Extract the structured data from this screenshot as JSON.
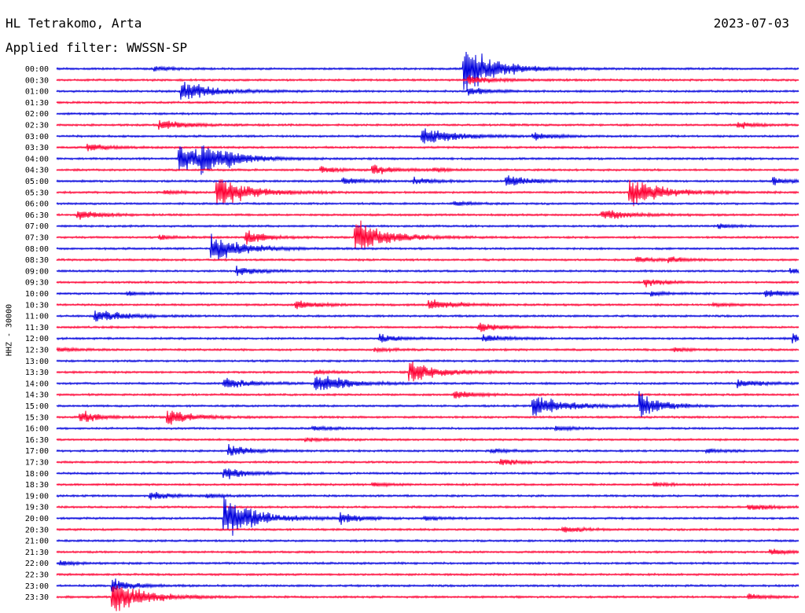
{
  "header": {
    "station": "HL Tetrakomo, Arta",
    "date": "2023-07-03",
    "filter": "Applied filter: WWSSN-SP"
  },
  "channel_label": "HHZ - 30000",
  "colors": {
    "blue": "#0000dd",
    "red": "#ff0033"
  },
  "chart_data": {
    "type": "line",
    "title": "HL Tetrakomo, Arta",
    "date": "2023-07-03",
    "ylabel": "HHZ - 30000",
    "row_minutes": 30,
    "xlim": [
      0,
      30
    ],
    "series_colors": [
      "#0000dd",
      "#ff0033"
    ],
    "rows": [
      {
        "label": "00:00",
        "color": "#0000dd",
        "events": [
          [
            16.5,
            35,
            1.0
          ],
          [
            4.0,
            3,
            0.5
          ]
        ]
      },
      {
        "label": "00:30",
        "color": "#ff0033",
        "events": [
          [
            16.7,
            6,
            0.8
          ]
        ]
      },
      {
        "label": "01:00",
        "color": "#0000dd",
        "events": [
          [
            5.1,
            14,
            1.0
          ],
          [
            16.7,
            6,
            0.5
          ]
        ]
      },
      {
        "label": "01:30",
        "color": "#ff0033",
        "events": []
      },
      {
        "label": "02:00",
        "color": "#0000dd",
        "events": []
      },
      {
        "label": "02:30",
        "color": "#ff0033",
        "events": [
          [
            4.2,
            8,
            0.7
          ],
          [
            27.6,
            5,
            0.4
          ]
        ]
      },
      {
        "label": "03:00",
        "color": "#0000dd",
        "events": [
          [
            14.8,
            14,
            1.0
          ],
          [
            19.3,
            5,
            0.5
          ]
        ]
      },
      {
        "label": "03:30",
        "color": "#ff0033",
        "events": [
          [
            1.3,
            5,
            0.5
          ]
        ]
      },
      {
        "label": "04:00",
        "color": "#0000dd",
        "events": [
          [
            5.0,
            20,
            1.0
          ],
          [
            5.9,
            18,
            0.8
          ],
          [
            6.9,
            5,
            0.3
          ]
        ]
      },
      {
        "label": "04:30",
        "color": "#ff0033",
        "events": [
          [
            10.7,
            5,
            0.4
          ],
          [
            12.8,
            7,
            0.6
          ],
          [
            15.3,
            3,
            0.3
          ]
        ]
      },
      {
        "label": "05:00",
        "color": "#0000dd",
        "events": [
          [
            11.6,
            5,
            0.5
          ],
          [
            14.5,
            5,
            0.5
          ],
          [
            18.2,
            8,
            0.7
          ],
          [
            29.0,
            5,
            0.5
          ]
        ]
      },
      {
        "label": "05:30",
        "color": "#ff0033",
        "events": [
          [
            6.5,
            24,
            1.0
          ],
          [
            23.2,
            22,
            1.0
          ],
          [
            4.4,
            3,
            0.4
          ]
        ]
      },
      {
        "label": "06:00",
        "color": "#0000dd",
        "events": [
          [
            16.1,
            3,
            0.4
          ]
        ]
      },
      {
        "label": "06:30",
        "color": "#ff0033",
        "events": [
          [
            0.9,
            6,
            0.7
          ],
          [
            22.1,
            8,
            0.8
          ]
        ]
      },
      {
        "label": "07:00",
        "color": "#0000dd",
        "events": [
          [
            26.8,
            3,
            0.4
          ]
        ]
      },
      {
        "label": "07:30",
        "color": "#ff0033",
        "events": [
          [
            12.1,
            25,
            1.0
          ],
          [
            7.7,
            12,
            0.4
          ],
          [
            4.2,
            3,
            0.3
          ]
        ]
      },
      {
        "label": "08:00",
        "color": "#0000dd",
        "events": [
          [
            6.3,
            20,
            1.0
          ]
        ]
      },
      {
        "label": "08:30",
        "color": "#ff0033",
        "events": [
          [
            23.5,
            4,
            0.4
          ],
          [
            24.8,
            4,
            0.4
          ]
        ]
      },
      {
        "label": "09:00",
        "color": "#0000dd",
        "events": [
          [
            7.3,
            7,
            0.5
          ],
          [
            29.7,
            3,
            0.4
          ]
        ]
      },
      {
        "label": "09:30",
        "color": "#ff0033",
        "events": [
          [
            23.8,
            6,
            0.4
          ]
        ]
      },
      {
        "label": "10:00",
        "color": "#0000dd",
        "events": [
          [
            2.9,
            3,
            0.4
          ],
          [
            24.1,
            3,
            0.4
          ],
          [
            28.7,
            6,
            0.8
          ]
        ]
      },
      {
        "label": "10:30",
        "color": "#ff0033",
        "events": [
          [
            9.7,
            6,
            0.6
          ],
          [
            15.1,
            8,
            0.8
          ],
          [
            26.6,
            3,
            0.4
          ]
        ]
      },
      {
        "label": "11:00",
        "color": "#0000dd",
        "events": [
          [
            1.6,
            10,
            0.8
          ]
        ]
      },
      {
        "label": "11:30",
        "color": "#ff0033",
        "events": [
          [
            17.1,
            6,
            0.6
          ]
        ]
      },
      {
        "label": "12:00",
        "color": "#0000dd",
        "events": [
          [
            13.1,
            6,
            0.5
          ],
          [
            17.3,
            6,
            0.5
          ],
          [
            29.8,
            6,
            0.8
          ]
        ]
      },
      {
        "label": "12:30",
        "color": "#ff0033",
        "events": [
          [
            0.1,
            3,
            0.4
          ],
          [
            12.9,
            3,
            0.4
          ],
          [
            25.0,
            3,
            0.3
          ]
        ]
      },
      {
        "label": "13:00",
        "color": "#0000dd",
        "events": []
      },
      {
        "label": "13:30",
        "color": "#ff0033",
        "events": [
          [
            14.3,
            14,
            1.0
          ],
          [
            10.5,
            3,
            0.4
          ]
        ]
      },
      {
        "label": "14:00",
        "color": "#0000dd",
        "events": [
          [
            6.8,
            8,
            0.8
          ],
          [
            10.5,
            14,
            1.0
          ],
          [
            27.6,
            6,
            0.6
          ]
        ]
      },
      {
        "label": "14:30",
        "color": "#ff0033",
        "events": [
          [
            16.1,
            6,
            0.6
          ]
        ]
      },
      {
        "label": "15:00",
        "color": "#0000dd",
        "events": [
          [
            19.3,
            16,
            1.0
          ],
          [
            23.6,
            20,
            0.5
          ]
        ]
      },
      {
        "label": "15:30",
        "color": "#ff0033",
        "events": [
          [
            4.5,
            10,
            0.8
          ],
          [
            1.0,
            10,
            0.4
          ]
        ]
      },
      {
        "label": "16:00",
        "color": "#0000dd",
        "events": [
          [
            10.4,
            3,
            0.4
          ],
          [
            20.2,
            3,
            0.5
          ]
        ]
      },
      {
        "label": "16:30",
        "color": "#ff0033",
        "events": [
          [
            10.1,
            3,
            0.4
          ]
        ]
      },
      {
        "label": "17:00",
        "color": "#0000dd",
        "events": [
          [
            7.0,
            8,
            0.6
          ],
          [
            17.6,
            3,
            0.4
          ],
          [
            26.3,
            3,
            0.4
          ]
        ]
      },
      {
        "label": "17:30",
        "color": "#ff0033",
        "events": [
          [
            18.0,
            5,
            0.4
          ]
        ]
      },
      {
        "label": "18:00",
        "color": "#0000dd",
        "events": [
          [
            6.8,
            8,
            0.6
          ]
        ]
      },
      {
        "label": "18:30",
        "color": "#ff0033",
        "events": [
          [
            12.8,
            3,
            0.3
          ],
          [
            24.2,
            3,
            0.3
          ]
        ]
      },
      {
        "label": "19:00",
        "color": "#0000dd",
        "events": [
          [
            3.8,
            6,
            0.5
          ],
          [
            6.1,
            3,
            0.3
          ]
        ]
      },
      {
        "label": "19:30",
        "color": "#ff0033",
        "events": [
          [
            28.0,
            5,
            0.5
          ]
        ]
      },
      {
        "label": "20:00",
        "color": "#0000dd",
        "events": [
          [
            6.8,
            30,
            1.0
          ],
          [
            11.5,
            8,
            0.5
          ],
          [
            14.9,
            3,
            0.3
          ]
        ]
      },
      {
        "label": "20:30",
        "color": "#ff0033",
        "events": [
          [
            20.5,
            5,
            0.4
          ]
        ]
      },
      {
        "label": "21:00",
        "color": "#0000dd",
        "events": []
      },
      {
        "label": "21:30",
        "color": "#ff0033",
        "events": [
          [
            28.9,
            4,
            0.4
          ]
        ]
      },
      {
        "label": "22:00",
        "color": "#0000dd",
        "events": [
          [
            0.2,
            3,
            0.5
          ]
        ]
      },
      {
        "label": "22:30",
        "color": "#ff0033",
        "events": []
      },
      {
        "label": "23:00",
        "color": "#0000dd",
        "events": [
          [
            2.3,
            10,
            0.5
          ]
        ]
      },
      {
        "label": "23:30",
        "color": "#ff0033",
        "events": [
          [
            2.3,
            25,
            1.0
          ],
          [
            28.0,
            4,
            0.4
          ]
        ]
      }
    ]
  }
}
